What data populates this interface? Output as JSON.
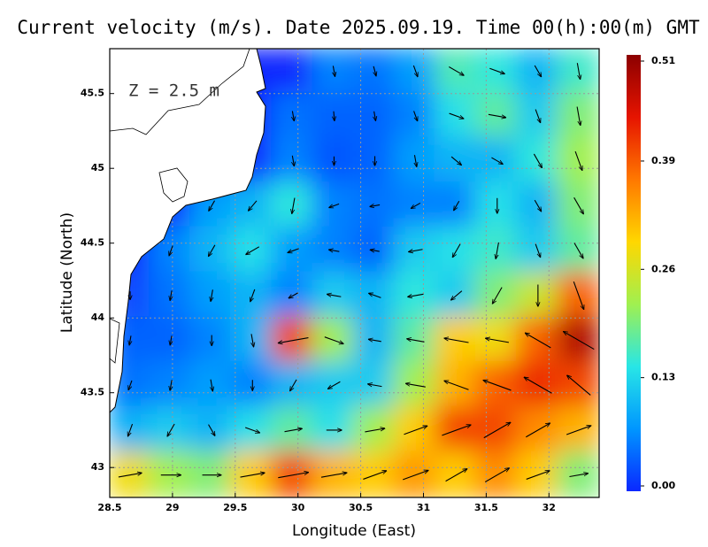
{
  "chart_data": {
    "type": "vector-field",
    "title": "Current velocity (m/s). Date 2025.09.19. Time 00(h):00(m) GMT",
    "annotation": "Z = 2.5 m",
    "x_label": "Longitude (East)",
    "y_label": "Latitude (North)",
    "xlim": [
      28.5,
      32.4
    ],
    "ylim": [
      42.8,
      45.8
    ],
    "xticks": [
      28.5,
      29,
      29.5,
      30,
      30.5,
      31,
      31.5,
      32
    ],
    "yticks": [
      43,
      43.5,
      44,
      44.5,
      45,
      45.5
    ],
    "grid": true,
    "clim": [
      0,
      0.51
    ],
    "cticks": [
      {
        "value": 0,
        "label": "0.00"
      },
      0.13,
      0.26,
      0.39,
      0.51
    ],
    "colormap": [
      "#0a28ff",
      "#0096ff",
      "#28e6e6",
      "#a0f050",
      "#ffd700",
      "#ff7800",
      "#e61400",
      "#8c0000"
    ],
    "speed": [
      [
        0,
        0,
        0,
        0,
        0,
        0.06,
        0.05,
        0.08,
        0.17,
        0.15,
        0.1,
        0.16
      ],
      [
        0,
        0,
        0,
        0,
        0.05,
        0.04,
        0.04,
        0.06,
        0.14,
        0.18,
        0.12,
        0.2
      ],
      [
        0,
        0,
        0,
        0,
        0.06,
        0.03,
        0.04,
        0.08,
        0.1,
        0.1,
        0.15,
        0.22
      ],
      [
        0,
        0,
        0.08,
        0.1,
        0.15,
        0.06,
        0.05,
        0.06,
        0.06,
        0.14,
        0.1,
        0.2
      ],
      [
        0,
        0.06,
        0.1,
        0.14,
        0.08,
        0.06,
        0.04,
        0.12,
        0.14,
        0.16,
        0.12,
        0.18
      ],
      [
        0.02,
        0.05,
        0.08,
        0.1,
        0.06,
        0.12,
        0.1,
        0.15,
        0.12,
        0.2,
        0.25,
        0.38
      ],
      [
        0.04,
        0.04,
        0.06,
        0.1,
        0.4,
        0.22,
        0.1,
        0.18,
        0.3,
        0.28,
        0.38,
        0.48
      ],
      [
        0.05,
        0.06,
        0.08,
        0.06,
        0.1,
        0.12,
        0.12,
        0.22,
        0.32,
        0.38,
        0.42,
        0.4
      ],
      [
        0.1,
        0.12,
        0.1,
        0.14,
        0.18,
        0.14,
        0.22,
        0.3,
        0.4,
        0.4,
        0.35,
        0.32
      ],
      [
        0.28,
        0.22,
        0.2,
        0.3,
        0.4,
        0.32,
        0.3,
        0.34,
        0.3,
        0.35,
        0.3,
        0.2
      ]
    ],
    "directions": [
      [
        -60,
        -60,
        -60,
        -60,
        -70,
        -80,
        -75,
        -70,
        -30,
        -20,
        -60,
        -80
      ],
      [
        -60,
        -60,
        -60,
        -60,
        -80,
        -85,
        -80,
        -70,
        -20,
        -10,
        -70,
        -80
      ],
      [
        -60,
        -60,
        -60,
        -60,
        -80,
        -90,
        -90,
        -80,
        -40,
        -30,
        -60,
        -70
      ],
      [
        -60,
        -60,
        -120,
        -130,
        -100,
        -160,
        -170,
        -150,
        -120,
        -90,
        -60,
        -60
      ],
      [
        -90,
        -110,
        -120,
        -150,
        -160,
        170,
        170,
        -170,
        -120,
        -100,
        -70,
        -60
      ],
      [
        -90,
        -100,
        -100,
        -110,
        -150,
        170,
        160,
        -170,
        -140,
        -120,
        -90,
        -70
      ],
      [
        -100,
        -100,
        -90,
        -80,
        -170,
        -20,
        170,
        170,
        170,
        170,
        150,
        150
      ],
      [
        -110,
        -100,
        -80,
        -90,
        -120,
        -150,
        170,
        170,
        160,
        160,
        150,
        140
      ],
      [
        -110,
        -120,
        -60,
        -20,
        10,
        0,
        10,
        20,
        20,
        30,
        30,
        20
      ],
      [
        10,
        0,
        0,
        10,
        10,
        10,
        20,
        20,
        30,
        30,
        20,
        10
      ]
    ]
  }
}
